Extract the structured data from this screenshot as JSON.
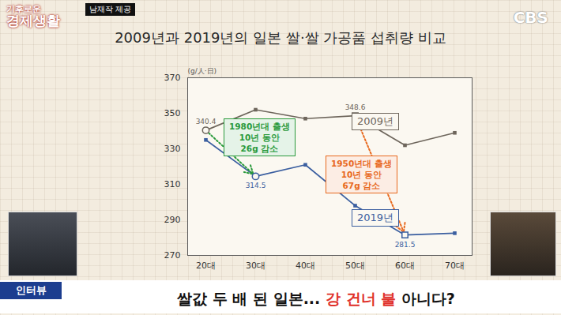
{
  "chart_data": {
    "type": "line",
    "title": "2009년과 2019년의 일본 쌀·쌀 가공품 섭취량 비교",
    "y_label": "(g/人·日)",
    "categories": [
      "20대",
      "30대",
      "40대",
      "50대",
      "60대",
      "70대"
    ],
    "ylim": [
      270,
      370
    ],
    "yticks": [
      270,
      290,
      310,
      330,
      350,
      370
    ],
    "grid": false,
    "marker": "square",
    "series": [
      {
        "name": "2009년",
        "color": "#6e665c",
        "values": [
          340.4,
          352,
          347,
          348.6,
          332,
          339
        ],
        "value_labels": [
          "340.4",
          null,
          null,
          "348.6",
          null,
          null
        ]
      },
      {
        "name": "2019년",
        "color": "#3b5fa0",
        "values": [
          335,
          314.5,
          321,
          298,
          281.5,
          282.5
        ],
        "value_labels": [
          null,
          "314.5",
          null,
          null,
          "281.5",
          null
        ]
      }
    ],
    "annotations": [
      {
        "text": [
          "1980년대 출생",
          "10년 동안",
          "26g 감소"
        ],
        "color": "#2a9a3c",
        "marker": "circle",
        "from": {
          "series": "2009년",
          "x": "20대"
        },
        "to": {
          "series": "2019년",
          "x": "30대"
        }
      },
      {
        "text": [
          "1950년대 출생",
          "10년 동안",
          "67g 감소"
        ],
        "color": "#e8691e",
        "marker": "square",
        "from": {
          "series": "2009년",
          "x": "50대"
        },
        "to": {
          "series": "2019년",
          "x": "60대"
        }
      }
    ]
  },
  "screen": {
    "program": [
      "기후로운",
      "경제생활"
    ],
    "channel": "CBS",
    "source": "남재작 제공",
    "tag": "인터뷰",
    "headline": "쌀값 두 배 된 일본... 강 건너 불 아니다?",
    "headline_highlight": "강 건너 불"
  }
}
